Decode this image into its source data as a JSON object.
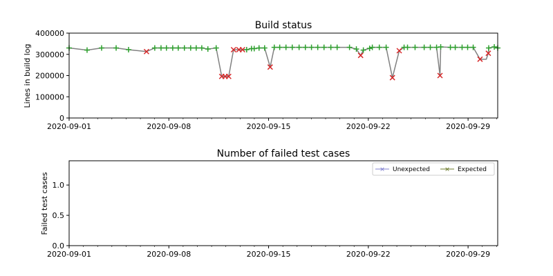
{
  "chart_data": [
    {
      "type": "line",
      "title": "Build status",
      "xlabel": "",
      "ylabel": "Lines in build log",
      "x_unit": "days since 2020-09-01",
      "xlim": [
        0,
        30.08
      ],
      "ylim": [
        0,
        400000
      ],
      "yticks": [
        "0",
        "100000",
        "200000",
        "300000",
        "400000"
      ],
      "ytick_values": [
        0,
        100000,
        200000,
        300000,
        400000
      ],
      "xticks": [
        "2020-09-01",
        "2020-09-08",
        "2020-09-15",
        "2020-09-22",
        "2020-09-29"
      ],
      "xtick_values": [
        0,
        7,
        14,
        21,
        28
      ],
      "line_color": "#808080",
      "pass_color": "#2ca02c",
      "fail_color": "#d62728",
      "points": [
        [
          0,
          330000,
          "pass"
        ],
        [
          1.26,
          320000,
          "pass"
        ],
        [
          2.28,
          330000,
          "pass"
        ],
        [
          3.3,
          330000,
          "pass"
        ],
        [
          4.17,
          322000,
          "pass"
        ],
        [
          5.43,
          313000,
          "fail"
        ],
        [
          6.01,
          330000,
          "pass"
        ],
        [
          6.45,
          330000,
          "pass"
        ],
        [
          6.83,
          330000,
          "pass"
        ],
        [
          7.27,
          330000,
          "pass"
        ],
        [
          7.66,
          330000,
          "pass"
        ],
        [
          8.09,
          330000,
          "pass"
        ],
        [
          8.53,
          330000,
          "pass"
        ],
        [
          8.92,
          330000,
          "pass"
        ],
        [
          9.31,
          330000,
          "pass"
        ],
        [
          9.74,
          325000,
          "pass"
        ],
        [
          10.32,
          330000,
          "pass"
        ],
        [
          10.71,
          196000,
          "fail"
        ],
        [
          10.95,
          196000,
          "fail"
        ],
        [
          11.2,
          196000,
          "fail"
        ],
        [
          11.54,
          322000,
          "fail"
        ],
        [
          11.92,
          322000,
          "fail"
        ],
        [
          12.17,
          322000,
          "fail"
        ],
        [
          12.46,
          322000,
          "pass"
        ],
        [
          12.8,
          327000,
          "pass"
        ],
        [
          12.99,
          327000,
          "pass"
        ],
        [
          13.33,
          330000,
          "pass"
        ],
        [
          13.72,
          330000,
          "pass"
        ],
        [
          14.11,
          240000,
          "fail"
        ],
        [
          14.4,
          333000,
          "pass"
        ],
        [
          14.78,
          333000,
          "pass"
        ],
        [
          15.22,
          333000,
          "pass"
        ],
        [
          15.66,
          333000,
          "pass"
        ],
        [
          16.14,
          333000,
          "pass"
        ],
        [
          16.58,
          333000,
          "pass"
        ],
        [
          17.01,
          333000,
          "pass"
        ],
        [
          17.45,
          333000,
          "pass"
        ],
        [
          17.89,
          333000,
          "pass"
        ],
        [
          18.37,
          333000,
          "pass"
        ],
        [
          18.81,
          333000,
          "pass"
        ],
        [
          19.68,
          333000,
          "pass"
        ],
        [
          20.16,
          325000,
          "pass"
        ],
        [
          20.46,
          295000,
          "fail"
        ],
        [
          20.65,
          320000,
          "pass"
        ],
        [
          21.09,
          328000,
          "pass"
        ],
        [
          21.28,
          333000,
          "pass"
        ],
        [
          21.77,
          333000,
          "pass"
        ],
        [
          22.25,
          333000,
          "pass"
        ],
        [
          22.69,
          190000,
          "fail"
        ],
        [
          23.17,
          317000,
          "fail"
        ],
        [
          23.51,
          333000,
          "pass"
        ],
        [
          23.75,
          333000,
          "pass"
        ],
        [
          24.28,
          333000,
          "pass"
        ],
        [
          24.92,
          333000,
          "pass"
        ],
        [
          25.35,
          333000,
          "pass"
        ],
        [
          25.79,
          333000,
          "pass"
        ],
        [
          26.03,
          200000,
          "fail"
        ],
        [
          26.08,
          335000,
          "pass"
        ],
        [
          26.76,
          333000,
          "pass"
        ],
        [
          27.1,
          333000,
          "pass"
        ],
        [
          27.58,
          333000,
          "pass"
        ],
        [
          27.97,
          333000,
          "pass"
        ],
        [
          28.36,
          333000,
          "pass"
        ],
        [
          28.84,
          277000,
          "fail"
        ],
        [
          29.28,
          277000,
          "line"
        ],
        [
          29.42,
          305000,
          "fail"
        ],
        [
          29.45,
          330000,
          "pass"
        ],
        [
          29.84,
          335000,
          "pass"
        ],
        [
          30.08,
          330000,
          "pass"
        ]
      ]
    },
    {
      "type": "line",
      "title": "Number of failed test cases",
      "xlabel": "",
      "ylabel": "Failed test cases",
      "x_unit": "days since 2020-09-01",
      "xlim": [
        0,
        30.08
      ],
      "ylim": [
        0,
        1.4
      ],
      "yticks": [
        "0.0",
        "0.5",
        "1.0"
      ],
      "ytick_values": [
        0,
        0.5,
        1.0
      ],
      "xticks": [
        "2020-09-01",
        "2020-09-08",
        "2020-09-15",
        "2020-09-22",
        "2020-09-29"
      ],
      "xtick_values": [
        0,
        7,
        14,
        21,
        28
      ],
      "legend_position": "top-right",
      "series": [
        {
          "name": "Unexpected",
          "color": "#8080d0",
          "values": []
        },
        {
          "name": "Expected",
          "color": "#6b7a2a",
          "values": []
        }
      ]
    }
  ]
}
